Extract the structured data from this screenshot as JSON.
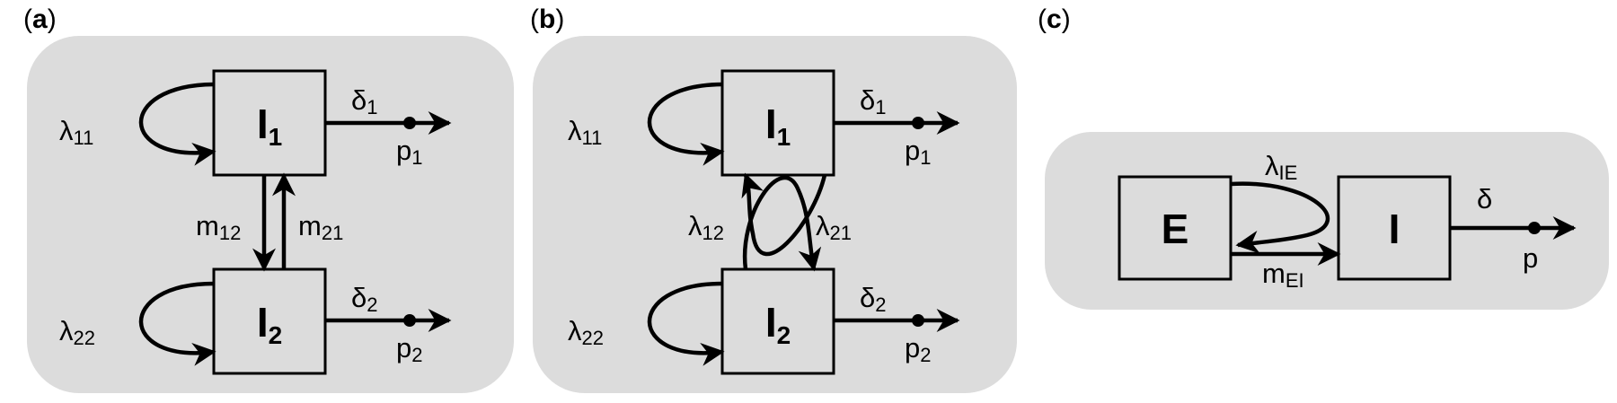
{
  "panels": {
    "a": {
      "label_open": "(",
      "label_letter": "a",
      "label_close": ")",
      "node1": {
        "main": "I",
        "sub": "1"
      },
      "node2": {
        "main": "I",
        "sub": "2"
      },
      "self_loop_1": {
        "main": "λ",
        "sub": "11"
      },
      "self_loop_2": {
        "main": "λ",
        "sub": "22"
      },
      "migration_12": {
        "main": "m",
        "sub": "12"
      },
      "migration_21": {
        "main": "m",
        "sub": "21"
      },
      "removal_1": {
        "main": "δ",
        "sub": "1"
      },
      "removal_2": {
        "main": "δ",
        "sub": "2"
      },
      "prob_1": {
        "main": "p",
        "sub": "1"
      },
      "prob_2": {
        "main": "p",
        "sub": "2"
      }
    },
    "b": {
      "label_open": "(",
      "label_letter": "b",
      "label_close": ")",
      "node1": {
        "main": "I",
        "sub": "1"
      },
      "node2": {
        "main": "I",
        "sub": "2"
      },
      "self_loop_1": {
        "main": "λ",
        "sub": "11"
      },
      "self_loop_2": {
        "main": "λ",
        "sub": "22"
      },
      "cross_12": {
        "main": "λ",
        "sub": "12"
      },
      "cross_21": {
        "main": "λ",
        "sub": "21"
      },
      "removal_1": {
        "main": "δ",
        "sub": "1"
      },
      "removal_2": {
        "main": "δ",
        "sub": "2"
      },
      "prob_1": {
        "main": "p",
        "sub": "1"
      },
      "prob_2": {
        "main": "p",
        "sub": "2"
      }
    },
    "c": {
      "label_open": "(",
      "label_letter": "c",
      "label_close": ")",
      "node_e": "E",
      "node_i": "I",
      "infection": {
        "main": "λ",
        "sub": "IE"
      },
      "migration": {
        "main": "m",
        "sub": "EI"
      },
      "removal": "δ",
      "prob": "p"
    }
  }
}
